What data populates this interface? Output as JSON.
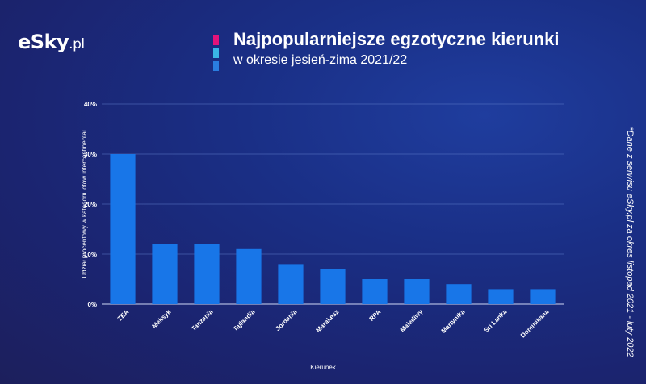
{
  "brand": {
    "logo_main": "eSky",
    "logo_suffix": ".pl"
  },
  "colors": {
    "accent_marks": [
      "#e4137a",
      "#3ab5e6",
      "#2a7de0"
    ],
    "bar": "#1876e8",
    "grid": "#5f7cc9"
  },
  "chart_data": {
    "type": "bar",
    "title": "Najpopularniejsze egzotyczne kierunki",
    "subtitle": "w okresie jesień-zima 2021/22",
    "xlabel": "Kierunek",
    "ylabel": "Udział procentowy w kategorii lotów intercontinental",
    "categories": [
      "ZEA",
      "Meksyk",
      "Tanzania",
      "Tajlandia",
      "Jordania",
      "Marakesz",
      "RPA",
      "Malediwy",
      "Martynika",
      "Sri Lanka",
      "Dominikana"
    ],
    "values": [
      30,
      12,
      12,
      11,
      8,
      7,
      5,
      5,
      4,
      3,
      3
    ],
    "ylim": [
      0,
      40
    ],
    "yticks": [
      "0%",
      "10%",
      "20%",
      "30%",
      "40%"
    ],
    "grid": true,
    "legend": "none"
  },
  "source_note": "*Dane z serwisu eSky.pl za okres listopad 2021 - luty 2022"
}
